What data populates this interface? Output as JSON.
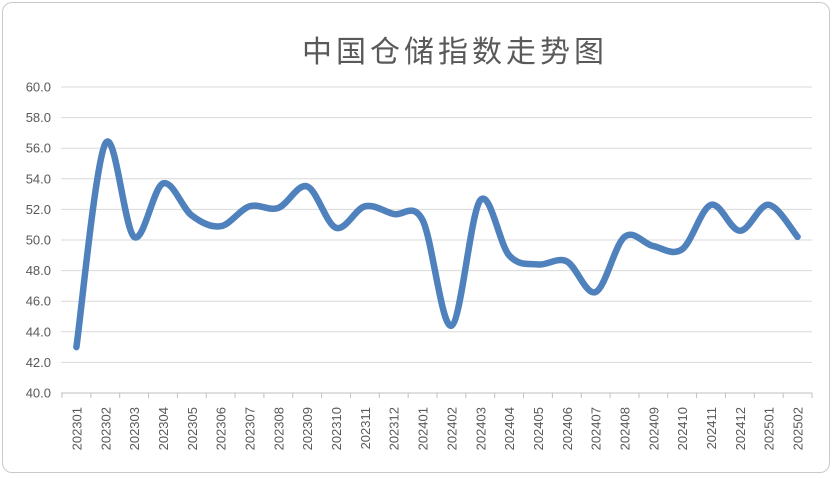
{
  "chart_data": {
    "type": "line",
    "title": "中国仓储指数走势图",
    "xlabel": "",
    "ylabel": "",
    "categories": [
      "202301",
      "202302",
      "202303",
      "202304",
      "202305",
      "202306",
      "202307",
      "202308",
      "202309",
      "202310",
      "202311",
      "202312",
      "202401",
      "202402",
      "202403",
      "202404",
      "202405",
      "202406",
      "202407",
      "202408",
      "202409",
      "202410",
      "202411",
      "202412",
      "202501",
      "202502"
    ],
    "values": [
      43.0,
      56.3,
      50.2,
      53.7,
      51.6,
      50.9,
      52.2,
      52.1,
      53.5,
      50.8,
      52.2,
      51.7,
      51.3,
      44.4,
      52.6,
      49.0,
      48.4,
      48.6,
      46.6,
      50.2,
      49.6,
      49.4,
      52.3,
      50.6,
      52.3,
      50.2
    ],
    "ylim": [
      40,
      60
    ],
    "ytick_step": 2,
    "ytick_labels": [
      "60.0",
      "58.0",
      "56.0",
      "54.0",
      "52.0",
      "50.0",
      "48.0",
      "46.0",
      "44.0",
      "42.0",
      "40.0"
    ],
    "grid": true,
    "legend": "none",
    "smooth": true,
    "colors": {
      "line": "#4F81BD",
      "gridline": "#D9D9D9",
      "axis": "#BFBFBF",
      "label": "#595959",
      "title": "#595959",
      "border": "#C9C9C9",
      "background": "#FFFFFF"
    }
  }
}
